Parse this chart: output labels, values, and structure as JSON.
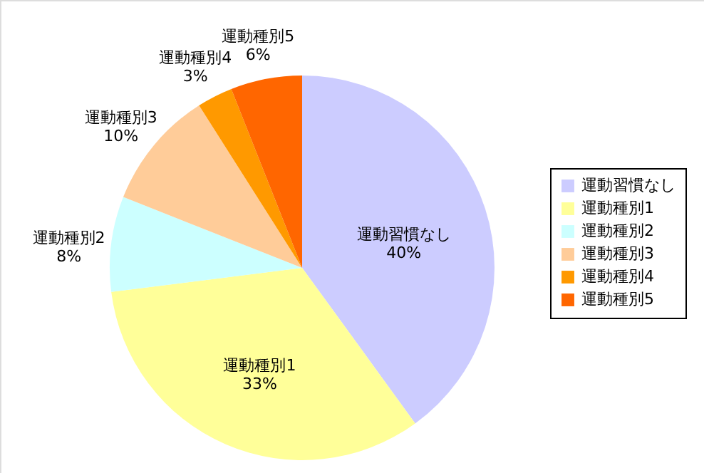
{
  "chart_data": {
    "type": "pie",
    "categories": [
      "運動習慣なし",
      "運動種別1",
      "運動種別2",
      "運動種別3",
      "運動種別4",
      "運動種別5"
    ],
    "values": [
      40,
      33,
      8,
      10,
      3,
      6
    ],
    "colors": [
      "#ccccff",
      "#ffff99",
      "#ccffff",
      "#ffcc99",
      "#ff9900",
      "#ff6600"
    ],
    "value_labels": [
      "40%",
      "33%",
      "8%",
      "10%",
      "3%",
      "6%"
    ],
    "legend": "right"
  }
}
